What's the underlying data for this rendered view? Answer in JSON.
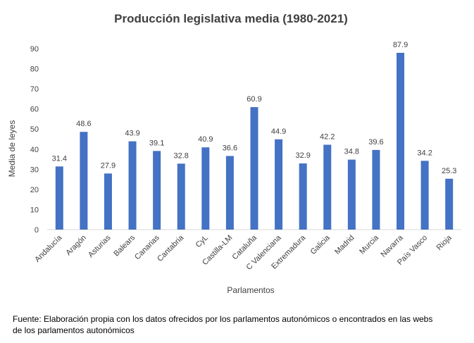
{
  "chart_data": {
    "type": "bar",
    "title": "Producción legislativa media (1980-2021)",
    "xlabel": "Parlamentos",
    "ylabel": "Media de leyes",
    "ylim": [
      0,
      90
    ],
    "yticks": [
      0,
      10,
      20,
      30,
      40,
      50,
      60,
      70,
      80,
      90
    ],
    "categories": [
      "Andalucía",
      "Aragón",
      "Asturias",
      "Balears",
      "Canarias",
      "Cantabria",
      "CyL",
      "Castilla-LM",
      "Cataluña",
      "C Valenciana",
      "Extremadura",
      "Galicia",
      "Madrid",
      "Murcia",
      "Navarra",
      "País Vasco",
      "Rioja"
    ],
    "values": [
      31.4,
      48.6,
      27.9,
      43.9,
      39.1,
      32.8,
      40.9,
      36.6,
      60.9,
      44.9,
      32.9,
      42.2,
      34.8,
      39.6,
      87.9,
      34.2,
      25.3
    ],
    "data_labels": [
      "31.4",
      "48.6",
      "27.9",
      "43.9",
      "39.1",
      "32.8",
      "40.9",
      "36.6",
      "60.9",
      "44.9",
      "32.9",
      "42.2",
      "34.8",
      "39.6",
      "87.9",
      "34.2",
      "25.3"
    ],
    "bar_color": "#4472C4",
    "grid": false,
    "legend": false
  },
  "source_note": "Fuente:  Elaboración propia con los datos ofrecidos por los parlamentos autonómicos o encontrados en  las webs de  los parlamentos autonómicos"
}
